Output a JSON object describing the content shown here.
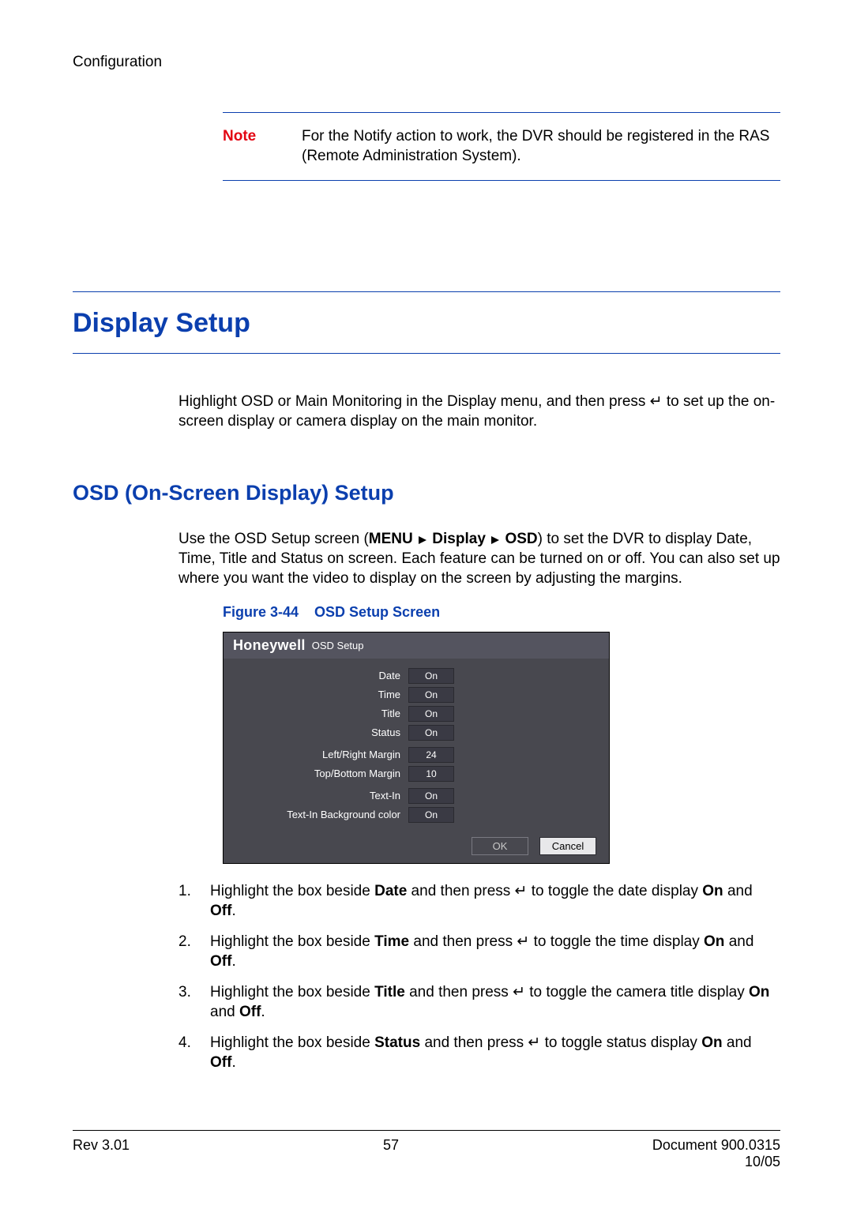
{
  "header": {
    "breadcrumb": "Configuration"
  },
  "note": {
    "label": "Note",
    "text": "For the Notify action to work, the DVR should be registered in the RAS (Remote Administration System)."
  },
  "section": {
    "title": "Display Setup"
  },
  "intro": "Highlight OSD or Main Monitoring in the Display menu, and then press ↵ to set up the on-screen display or camera display on the main monitor.",
  "subsection": {
    "title": "OSD (On-Screen Display) Setup"
  },
  "osd_intro": {
    "pre": "Use the OSD Setup screen (",
    "menu_path": [
      "MENU",
      "Display",
      "OSD"
    ],
    "post": ") to set the DVR to display Date, Time, Title and Status on screen. Each feature can be turned on or off. You can also set up where you want the video to display on the screen by adjusting the margins."
  },
  "figure": {
    "label": "Figure 3-44",
    "title": "OSD Setup Screen"
  },
  "osd_panel": {
    "brand": "Honeywell",
    "subtitle": "OSD Setup",
    "rows": [
      {
        "label": "Date",
        "value": "On"
      },
      {
        "label": "Time",
        "value": "On"
      },
      {
        "label": "Title",
        "value": "On"
      },
      {
        "label": "Status",
        "value": "On"
      },
      {
        "label": "Left/Right Margin",
        "value": "24",
        "group": 2
      },
      {
        "label": "Top/Bottom Margin",
        "value": "10",
        "group": 2
      },
      {
        "label": "Text-In",
        "value": "On",
        "group": 3
      },
      {
        "label": "Text-In Background color",
        "value": "On",
        "group": 3
      }
    ],
    "buttons": {
      "ok": "OK",
      "cancel": "Cancel"
    },
    "colors": {
      "titlebar_bg": "#54545f",
      "body_bg": "#48484f",
      "value_bg": "#3a3a44",
      "cancel_bg": "#e8e8ea"
    }
  },
  "steps": [
    {
      "num": "1.",
      "pre": "Highlight the box beside ",
      "field": "Date",
      "mid": " and then press ↵ to toggle the date display ",
      "on": "On",
      "and": " and ",
      "off": "Off",
      "end": "."
    },
    {
      "num": "2.",
      "pre": "Highlight the box beside ",
      "field": "Time",
      "mid": " and then press ↵ to toggle the time display ",
      "on": "On",
      "and": " and ",
      "off": "Off",
      "end": "."
    },
    {
      "num": "3.",
      "pre": "Highlight the box beside ",
      "field": "Title",
      "mid": " and then press ↵ to toggle the camera title display ",
      "on": "On",
      "and": " and ",
      "off": "Off",
      "end": "."
    },
    {
      "num": "4.",
      "pre": "Highlight the box beside ",
      "field": "Status",
      "mid": " and then press ↵ to toggle status display ",
      "on": "On",
      "and": " and ",
      "off": "Off",
      "end": "."
    }
  ],
  "footer": {
    "rev": "Rev 3.01",
    "page": "57",
    "doc": "Document 900.0315",
    "date": "10/05"
  }
}
